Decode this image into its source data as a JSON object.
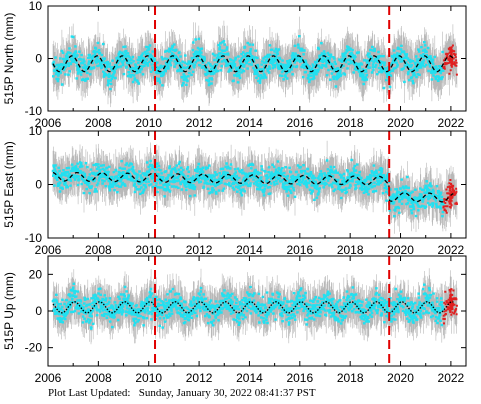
{
  "footer": {
    "label": "Plot Last Updated:",
    "timestamp": "Sunday, January 30, 2022 08:41:37 PST"
  },
  "colors": {
    "data_points": "#22e0f0",
    "error_bars": "#b8b8b8",
    "recent_points": "#e02020",
    "model_line": "#000000",
    "event_lines": "#e00000"
  },
  "chart_data": [
    {
      "type": "scatter",
      "panel": "north",
      "title": "",
      "xlabel": "",
      "ylabel": "515P North (mm)",
      "xlim": [
        2006,
        2022.6
      ],
      "ylim": [
        -10,
        10
      ],
      "xticks": [
        2006,
        2008,
        2010,
        2012,
        2014,
        2016,
        2018,
        2020,
        2022
      ],
      "yticks": [
        -10,
        0,
        10
      ],
      "event_lines_x": [
        2010.25,
        2019.55
      ],
      "model": {
        "offset": -1.0,
        "amplitude": 1.5,
        "period_years": 1.0,
        "phase": 0.3
      },
      "scatter_sigma": 2.2,
      "error_bar_sigma": 3.0,
      "recent_start": 2021.7,
      "grid": false,
      "legend": "none"
    },
    {
      "type": "scatter",
      "panel": "east",
      "title": "",
      "xlabel": "",
      "ylabel": "515P East (mm)",
      "xlim": [
        2006,
        2022.6
      ],
      "ylim": [
        -10,
        10
      ],
      "xticks": [
        2006,
        2008,
        2010,
        2012,
        2014,
        2016,
        2018,
        2020,
        2022
      ],
      "yticks": [
        -10,
        0,
        10
      ],
      "event_lines_x": [
        2010.25,
        2019.55
      ],
      "model": {
        "offset_start": 1.5,
        "offset_end": 0.5,
        "amplitude": 0.8,
        "period_years": 1.0,
        "phase": 0.1,
        "step_after_event2": -3.0
      },
      "scatter_sigma": 2.0,
      "error_bar_sigma": 2.8,
      "recent_start": 2021.7,
      "grid": false,
      "legend": "none"
    },
    {
      "type": "scatter",
      "panel": "up",
      "title": "",
      "xlabel": "",
      "ylabel": "515P Up (mm)",
      "xlim": [
        2006,
        2022.6
      ],
      "ylim": [
        -30,
        30
      ],
      "xticks": [
        2006,
        2008,
        2010,
        2012,
        2014,
        2016,
        2018,
        2020,
        2022
      ],
      "yticks": [
        -20,
        0,
        20
      ],
      "event_lines_x": [
        2010.25,
        2019.55
      ],
      "model": {
        "offset": 2.0,
        "amplitude": 3.0,
        "period_years": 1.0,
        "phase": 0.2
      },
      "scatter_sigma": 6.0,
      "error_bar_sigma": 8.0,
      "recent_start": 2021.7,
      "grid": false,
      "legend": "none"
    }
  ]
}
